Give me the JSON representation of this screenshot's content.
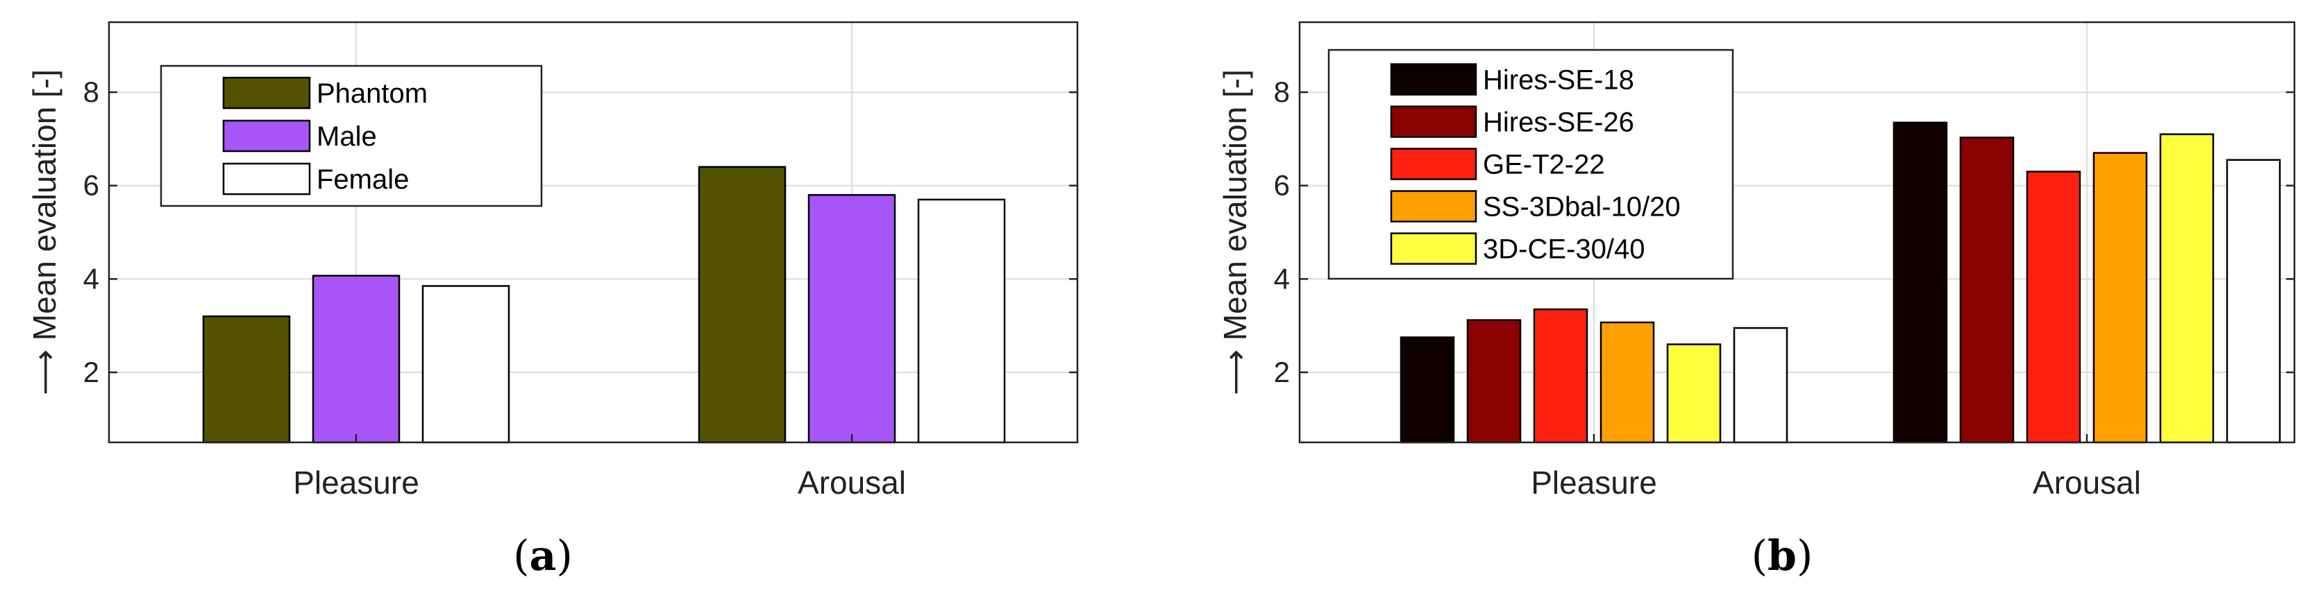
{
  "chart_data": [
    {
      "type": "bar",
      "panel_label": "a",
      "categories": [
        "Pleasure",
        "Arousal"
      ],
      "ylabel": "⟶ Mean evaluation [-]",
      "ylim": [
        0.5,
        9.5
      ],
      "yticks": [
        "2",
        "4",
        "6",
        "8"
      ],
      "grid": true,
      "legend_position": "top-left",
      "series": [
        {
          "name": "Phantom",
          "color": "#525200",
          "values": [
            3.2,
            6.4
          ]
        },
        {
          "name": "Male",
          "color": "#a855f7",
          "values": [
            4.07,
            5.8
          ]
        },
        {
          "name": "Female",
          "color": "#ffffff",
          "values": [
            3.85,
            5.7
          ]
        }
      ]
    },
    {
      "type": "bar",
      "panel_label": "b",
      "categories": [
        "Pleasure",
        "Arousal"
      ],
      "ylabel": "⟶ Mean evaluation [-]",
      "ylim": [
        0.5,
        9.5
      ],
      "yticks": [
        "2",
        "4",
        "6",
        "8"
      ],
      "grid": true,
      "legend_position": "top-left",
      "series": [
        {
          "name": "Hires-SE-18",
          "color": "#0f0000",
          "values": [
            2.75,
            7.35
          ]
        },
        {
          "name": "Hires-SE-26",
          "color": "#8b0000",
          "values": [
            3.12,
            7.03
          ]
        },
        {
          "name": "GE-T2-22",
          "color": "#ff2010",
          "values": [
            3.35,
            6.3
          ]
        },
        {
          "name": "SS-3Dbal-10/20",
          "color": "#ffa000",
          "values": [
            3.07,
            6.7
          ]
        },
        {
          "name": "3D-CE-30/40",
          "color": "#ffff40",
          "values": [
            2.6,
            7.1
          ]
        },
        {
          "color": "#ffffff",
          "values": [
            2.95,
            6.55
          ]
        }
      ]
    }
  ]
}
